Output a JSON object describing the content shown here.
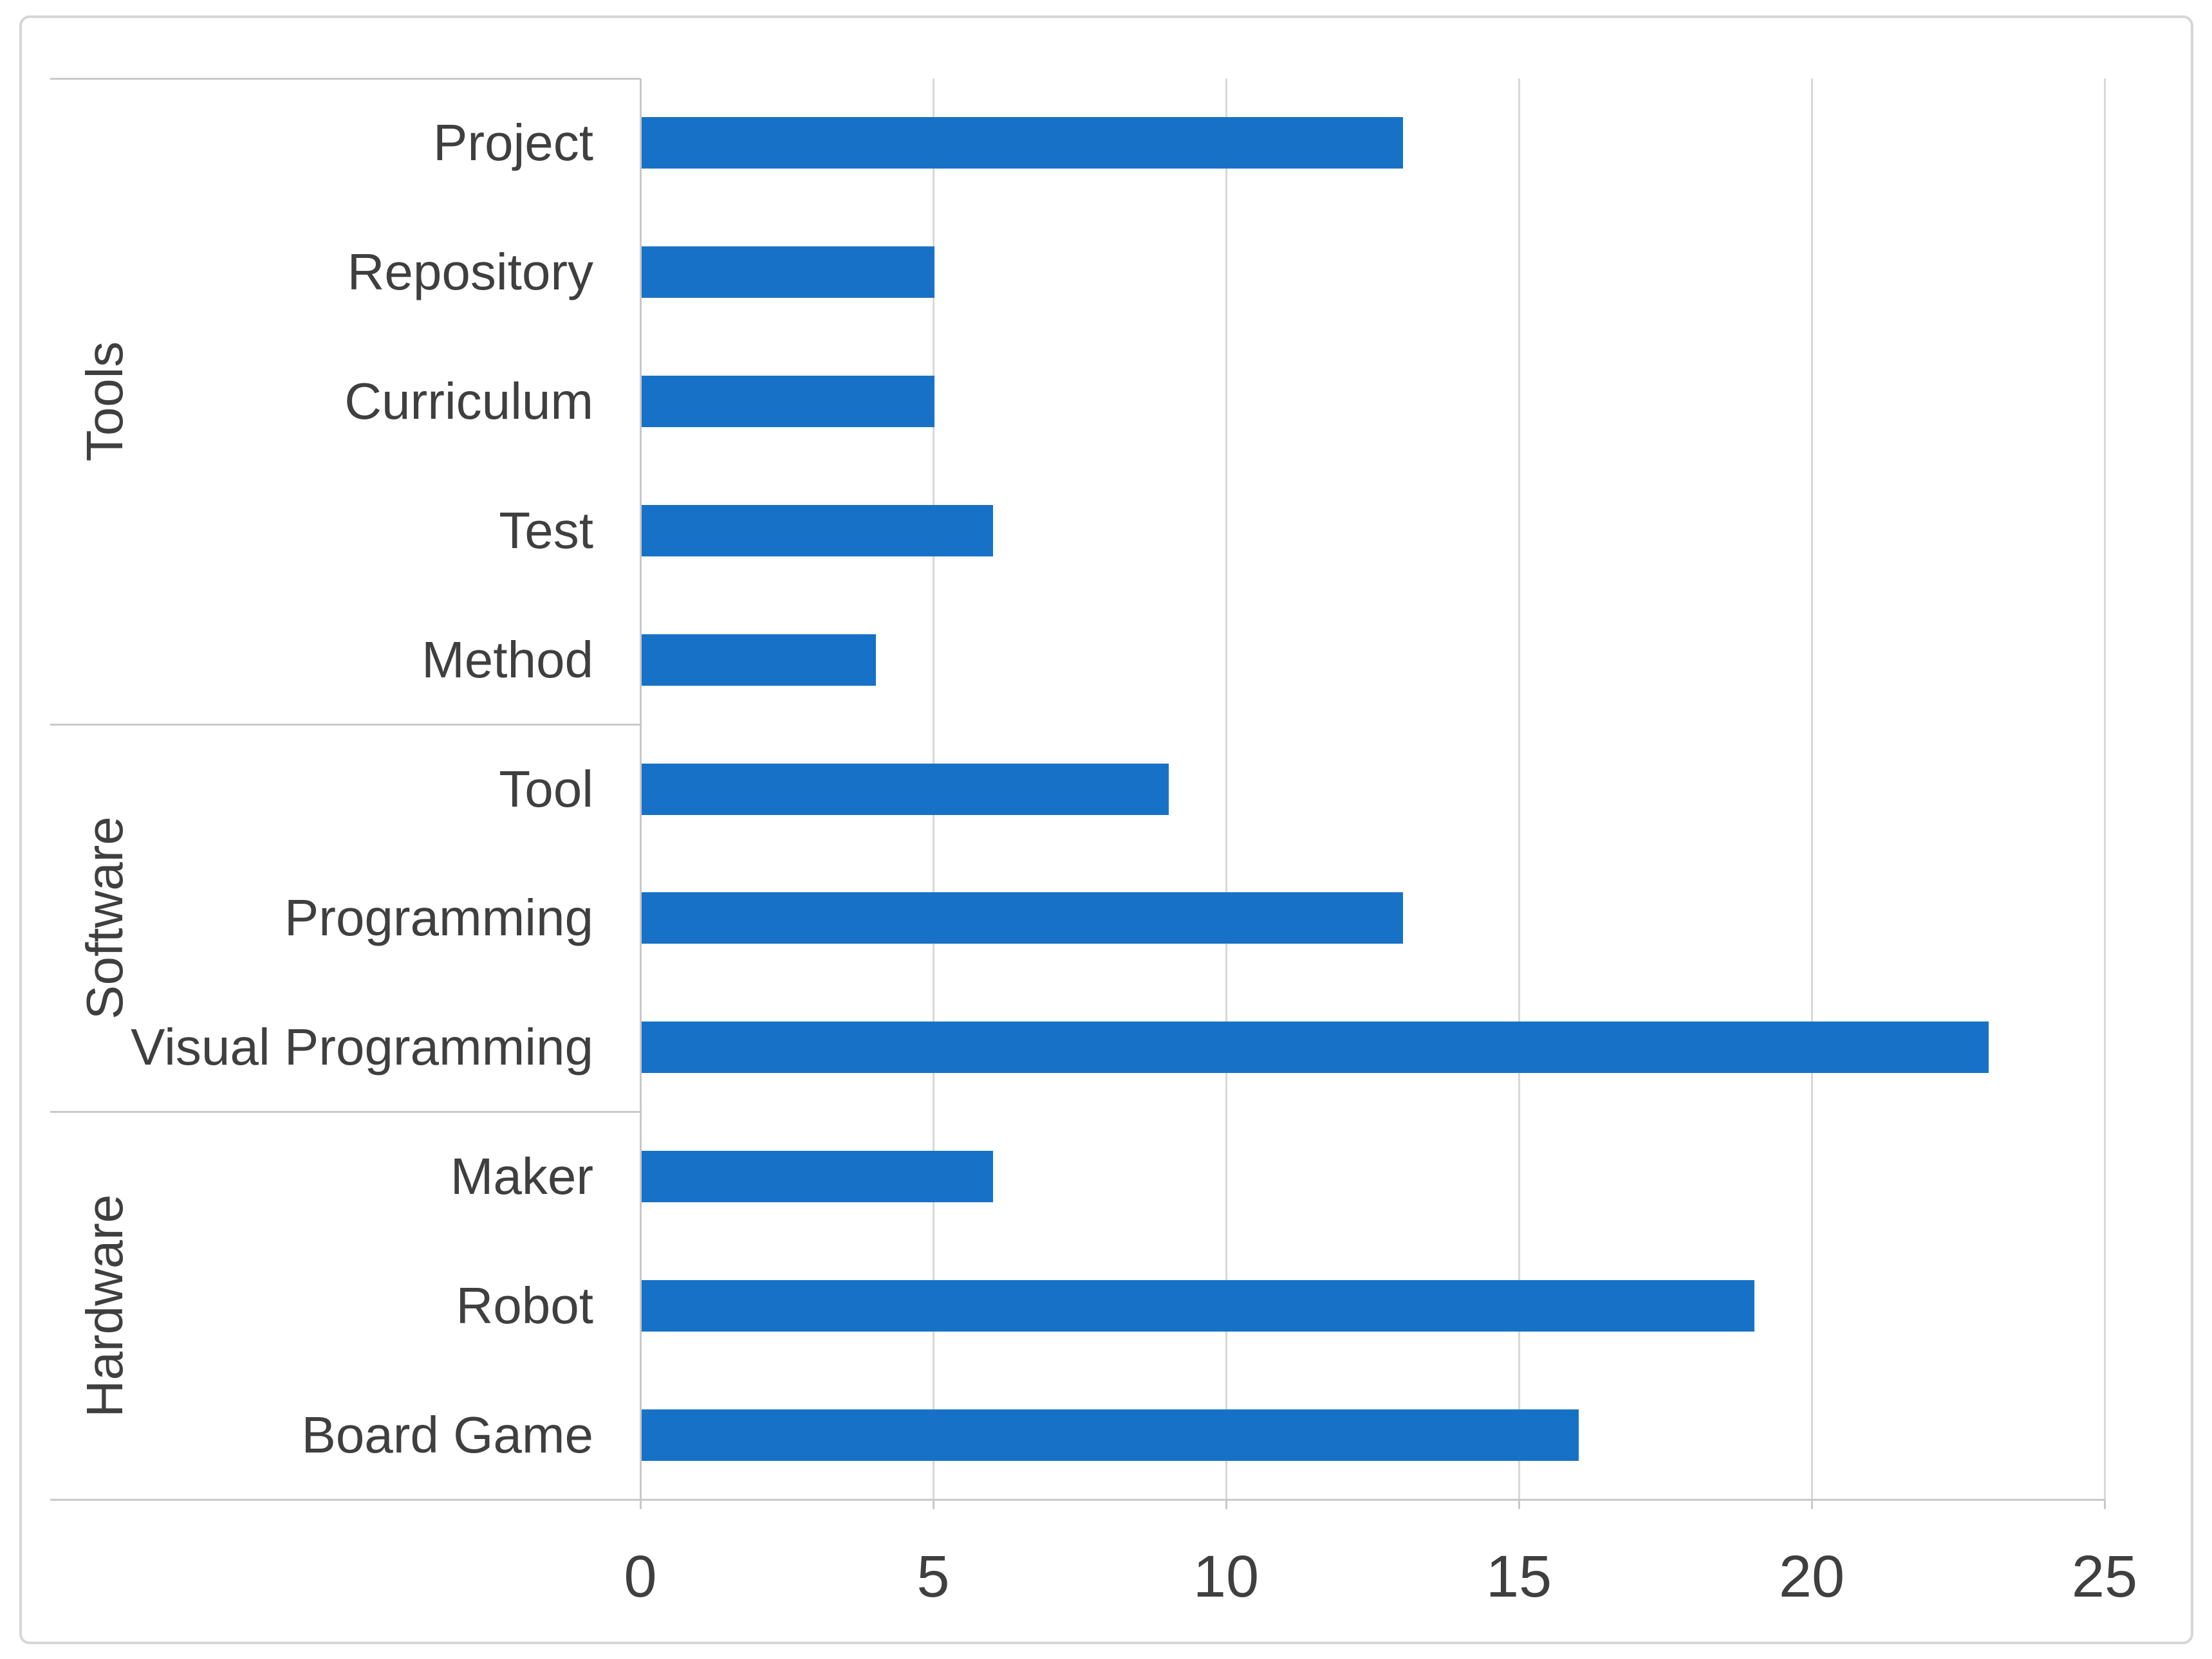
{
  "figure": {
    "background": "#ffffff",
    "border_color": "#d6d6d6"
  },
  "chart_data": {
    "type": "bar",
    "orientation": "horizontal",
    "title": "",
    "xlabel": "",
    "ylabel": "",
    "xlim": [
      0,
      25
    ],
    "x_ticks": [
      "0",
      "5",
      "10",
      "15",
      "20",
      "25"
    ],
    "grid": true,
    "legend": false,
    "bar_color": "#1772c7",
    "gridline_color": "#d8d8d8",
    "axis_line_color": "#c9c9c9",
    "text_color": "#3f3f3f",
    "groups": [
      {
        "label": "Tools",
        "categories": [
          "Project",
          "Repository",
          "Curriculum",
          "Test",
          "Method"
        ],
        "values": [
          13,
          5,
          5,
          6,
          4
        ]
      },
      {
        "label": "Software",
        "categories": [
          "Tool",
          "Programming",
          "Visual Programming"
        ],
        "values": [
          9,
          13,
          23
        ]
      },
      {
        "label": "Hardware",
        "categories": [
          "Maker",
          "Robot",
          "Board Game"
        ],
        "values": [
          6,
          19,
          16
        ]
      }
    ]
  }
}
